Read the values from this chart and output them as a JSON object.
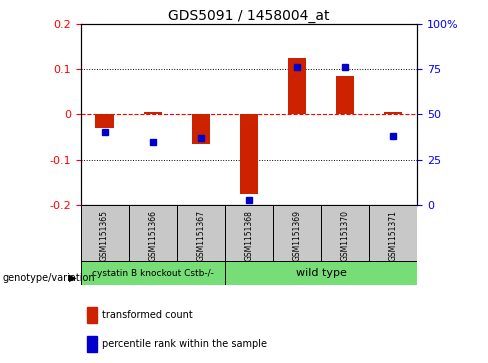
{
  "title": "GDS5091 / 1458004_at",
  "samples": [
    "GSM1151365",
    "GSM1151366",
    "GSM1151367",
    "GSM1151368",
    "GSM1151369",
    "GSM1151370",
    "GSM1151371"
  ],
  "transformed_count": [
    -0.03,
    0.005,
    -0.065,
    -0.175,
    0.125,
    0.085,
    0.005
  ],
  "percentile_rank": [
    40,
    35,
    37,
    3,
    76,
    76,
    38
  ],
  "group1_indices": [
    0,
    1,
    2
  ],
  "group2_indices": [
    3,
    4,
    5,
    6
  ],
  "group1_label": "cystatin B knockout Cstb-/-",
  "group2_label": "wild type",
  "group_color": "#77DD77",
  "sample_box_color": "#C8C8C8",
  "ylim_left": [
    -0.2,
    0.2
  ],
  "ylim_right": [
    0,
    100
  ],
  "yticks_left": [
    -0.2,
    -0.1,
    0.0,
    0.1,
    0.2
  ],
  "yticks_right": [
    0,
    25,
    50,
    75,
    100
  ],
  "bar_color": "#CC2200",
  "dot_color": "#0000CC",
  "legend_bar_label": "transformed count",
  "legend_dot_label": "percentile rank within the sample",
  "genotype_label": "genotype/variation",
  "title_fontsize": 10,
  "tick_fontsize": 8,
  "label_fontsize": 7,
  "sample_fontsize": 5.5,
  "group_fontsize": 6.5
}
